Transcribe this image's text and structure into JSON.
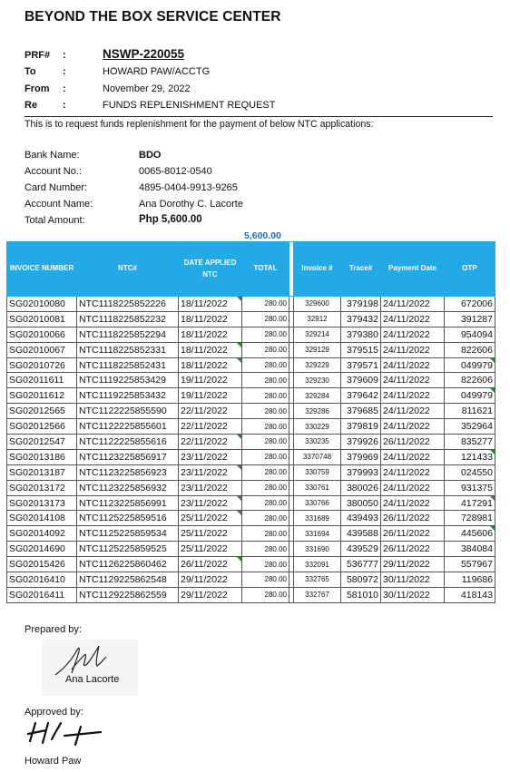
{
  "company": "BEYOND THE BOX SERVICE CENTER",
  "header": {
    "prf_label": "PRF#",
    "prf_value": "NSWP-220055",
    "to_label": "To",
    "to_value": "HOWARD PAW/ACCTG",
    "from_label": "From",
    "from_value": "November 29, 2022",
    "re_label": "Re",
    "re_value": "FUNDS REPLENISHMENT REQUEST",
    "colon": ":"
  },
  "intro": "This is to request funds replenishment for the payment of below NTC applications:",
  "bank": {
    "bank_name_label": "Bank Name:",
    "bank_name": "BDO",
    "account_no_label": "Account No.:",
    "account_no": "0065-8012-0540",
    "card_number_label": "Card Number:",
    "card_number": "4895-0404-9913-9265",
    "account_name_label": "Account Name:",
    "account_name": "Ana Dorothy C. Lacorte",
    "total_amount_label": "Total Amount:",
    "total_amount": "Php 5,600.00"
  },
  "sum_above_table": "5,600.00",
  "table": {
    "headers": [
      "INVOICE NUMBER",
      "NTC#",
      "DATE APPLIED NTC",
      "TOTAL",
      "Invoice #",
      "Trace#",
      "Payment Date",
      "OTP"
    ],
    "rows": [
      [
        "SG02010080",
        "NTC1118225852226",
        "18/11/2022",
        "280.00",
        "329600",
        "379198",
        "24/11/2022",
        "672006"
      ],
      [
        "SG02010081",
        "NTC1118225852232",
        "18/11/2022",
        "280.00",
        "32912",
        "379432",
        "24/11/2022",
        "391287"
      ],
      [
        "SG02010066",
        "NTC1118225852294",
        "18/11/2022",
        "280.00",
        "329214",
        "379380",
        "24/11/2022",
        "954094"
      ],
      [
        "SG02010067",
        "NTC1118225852331",
        "18/11/2022",
        "280.00",
        "329129",
        "379515",
        "24/11/2022",
        "822606"
      ],
      [
        "SG02010726",
        "NTC1118225852431",
        "18/11/2022",
        "280.00",
        "329229",
        "379571",
        "24/11/2022",
        "049979"
      ],
      [
        "SG02011611",
        "NTC1119225853429",
        "19/11/2022",
        "280.00",
        "329230",
        "379609",
        "24/11/2022",
        "822606"
      ],
      [
        "SG02011612",
        "NTC1119225853432",
        "19/11/2022",
        "280.00",
        "329284",
        "379642",
        "24/11/2022",
        "049979"
      ],
      [
        "SG02012565",
        "NTC1122225855590",
        "22/11/2022",
        "280.00",
        "329286",
        "379685",
        "24/11/2022",
        "811621"
      ],
      [
        "SG02012566",
        "NTC1122225855601",
        "22/11/2022",
        "280.00",
        "330229",
        "379819",
        "24/11/2022",
        "352964"
      ],
      [
        "SG02012547",
        "NTC1122225855616",
        "22/11/2022",
        "280.00",
        "330235",
        "379926",
        "26/11/2022",
        "835277"
      ],
      [
        "SG02013186",
        "NTC1123225856917",
        "23/11/2022",
        "280.00",
        "3370748",
        "379969",
        "24/11/2022",
        "121433"
      ],
      [
        "SG02013187",
        "NTC1123225856923",
        "23/11/2022",
        "280.00",
        "330759",
        "379993",
        "24/11/2022",
        "024550"
      ],
      [
        "SG02013172",
        "NTC1123225856932",
        "23/11/2022",
        "280.00",
        "330761",
        "380026",
        "24/11/2022",
        "931375"
      ],
      [
        "SG02013173",
        "NTC1123225856991",
        "23/11/2022",
        "280.00",
        "330766",
        "380050",
        "24/11/2022",
        "417291"
      ],
      [
        "SG02014108",
        "NTC1125225859516",
        "25/11/2022",
        "280.00",
        "331689",
        "439493",
        "26/11/2022",
        "728981"
      ],
      [
        "SG02014092",
        "NTC1125225859534",
        "25/11/2022",
        "280.00",
        "331694",
        "439588",
        "26/11/2022",
        "445606"
      ],
      [
        "SG02014690",
        "NTC1125225859525",
        "25/11/2022",
        "280.00",
        "331690",
        "439529",
        "26/11/2022",
        "384084"
      ],
      [
        "SG02015426",
        "NTC1126225860462",
        "26/11/2022",
        "280.00",
        "332091",
        "536777",
        "29/11/2022",
        "557967"
      ],
      [
        "SG02016410",
        "NTC1129225862548",
        "29/11/2022",
        "280.00",
        "332765",
        "580972",
        "30/11/2022",
        "119686"
      ],
      [
        "SG02016411",
        "NTC1129225862559",
        "29/11/2022",
        "280.00",
        "332767",
        "581010",
        "30/11/2022",
        "418143"
      ]
    ]
  },
  "signatures": {
    "prepared_by_label": "Prepared by:",
    "prepared_by_name": "Ana Lacorte",
    "approved_by_label": "Approved by:",
    "approved_by_name": "Howard Paw"
  },
  "colors": {
    "header_fill": "#22a9e6",
    "sum_text": "#1f6fb4",
    "comment_marker": "#2a8a2a"
  }
}
